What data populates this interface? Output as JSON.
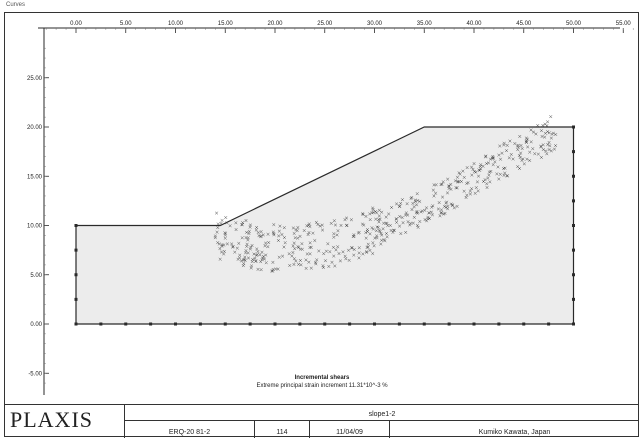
{
  "window": {
    "corner_label": "Curves"
  },
  "chart_data": {
    "type": "scatter",
    "title": "Incremental shears",
    "subtitle": "Extreme principal strain increment 11.31*10^-3 %",
    "x_ticks": [
      "0.00",
      "5.00",
      "10.00",
      "15.00",
      "20.00",
      "25.00",
      "30.00",
      "35.00",
      "40.00",
      "45.00",
      "50.00",
      "55.00"
    ],
    "y_ticks": [
      "25.00",
      "20.00",
      "15.00",
      "10.00",
      "5.00",
      "0.00",
      "-5.00"
    ],
    "xlim": [
      -5,
      57
    ],
    "ylim": [
      -7,
      29
    ],
    "geometry": {
      "slope_profile": [
        [
          0,
          0
        ],
        [
          0,
          10
        ],
        [
          14.5,
          10
        ],
        [
          35,
          20
        ],
        [
          50,
          20
        ],
        [
          50,
          0
        ],
        [
          0,
          0
        ]
      ],
      "mesh_nodes_bottom": [
        0,
        2.5,
        5,
        7.5,
        10,
        12.5,
        15,
        17.5,
        20,
        22.5,
        25,
        27.5,
        30,
        32.5,
        35,
        37.5,
        40,
        42.5,
        45,
        47.5,
        50
      ],
      "mesh_nodes_side": [
        0,
        2.5,
        5,
        7.5,
        10
      ]
    },
    "slip_zone": {
      "description_x": [
        14,
        18,
        22,
        26,
        30,
        34,
        38,
        42,
        46,
        48
      ],
      "center_y": [
        9,
        7.9,
        7.6,
        8.2,
        9.6,
        11.4,
        13.5,
        16,
        18.2,
        19.5
      ]
    },
    "colors": {
      "soil_fill": "#ececec",
      "outline": "#2a2a2a",
      "marks": "#333333",
      "grid": "#cfcfcf"
    }
  },
  "titleblock": {
    "logo": "PLAXIS",
    "project_header": "slope1-2",
    "project_code": "ERQ-20 81-2",
    "step": "114",
    "date": "11/04/09",
    "user": "Kumiko Kawata, Japan"
  }
}
